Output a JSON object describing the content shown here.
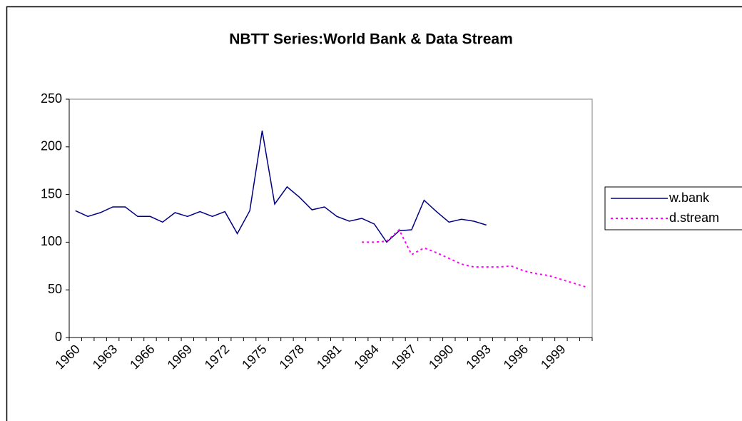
{
  "chart_data": {
    "type": "line",
    "title": "NBTT Series:World Bank  & Data Stream",
    "categories": [
      "1960",
      null,
      null,
      "1963",
      null,
      null,
      "1966",
      null,
      null,
      "1969",
      null,
      null,
      "1972",
      null,
      null,
      "1975",
      null,
      null,
      "1978",
      null,
      null,
      "1981",
      null,
      null,
      "1984",
      null,
      null,
      "1987",
      null,
      null,
      "1990",
      null,
      null,
      "1993",
      null,
      null,
      "1996",
      null,
      null,
      "1999",
      null,
      null
    ],
    "series": [
      {
        "name": "w.bank",
        "color": "#000080",
        "dash": false,
        "values": [
          133,
          127,
          131,
          137,
          137,
          127,
          127,
          121,
          131,
          127,
          132,
          127,
          132,
          109,
          133,
          217,
          140,
          158,
          147,
          134,
          137,
          127,
          122,
          125,
          119,
          100,
          112,
          113,
          144,
          132,
          121,
          124,
          122,
          118,
          null,
          null,
          null,
          null,
          null,
          null,
          null,
          null
        ]
      },
      {
        "name": "d.stream",
        "color": "#ff00ff",
        "dash": true,
        "values": [
          null,
          null,
          null,
          null,
          null,
          null,
          null,
          null,
          null,
          null,
          null,
          null,
          null,
          null,
          null,
          null,
          null,
          null,
          null,
          null,
          null,
          null,
          null,
          100,
          100,
          101,
          113,
          87,
          94,
          89,
          83,
          77,
          74,
          74,
          74,
          75,
          70,
          67,
          65,
          61,
          57,
          53
        ]
      }
    ],
    "ylim": [
      0,
      250
    ],
    "yticks": [
      0,
      50,
      100,
      150,
      200,
      250
    ],
    "grid": false,
    "legend": "right"
  }
}
